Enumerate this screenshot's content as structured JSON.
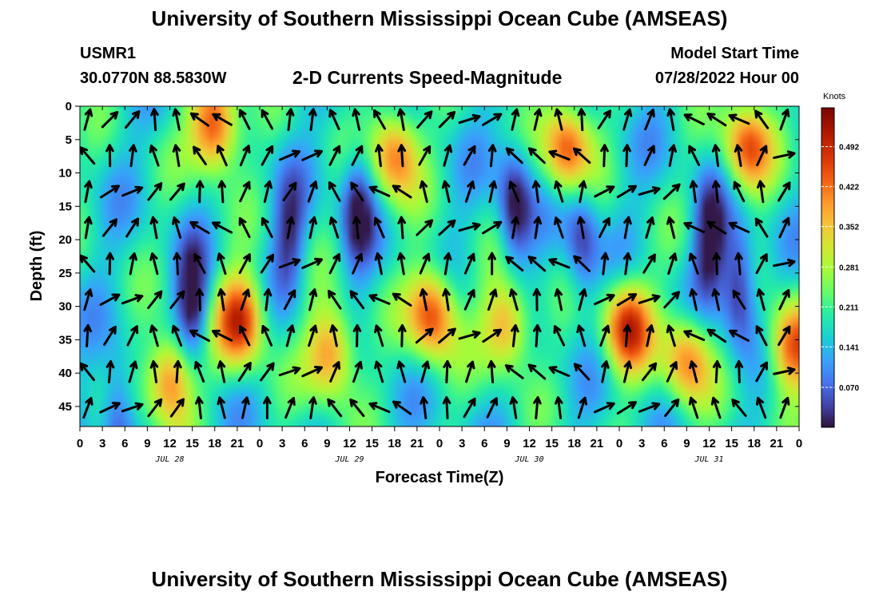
{
  "header": {
    "title": "University of Southern Mississippi Ocean Cube (AMSEAS)",
    "station": "USMR1",
    "coords": "30.0770N  88.5830W",
    "chart_title": "2-D Currents Speed-Magnitude",
    "model_label": "Model Start Time",
    "model_time": "07/28/2022 Hour 00"
  },
  "footer": {
    "title": "University of Southern Mississippi Ocean Cube (AMSEAS)"
  },
  "chart_data": {
    "type": "heatmap",
    "title": "2-D Currents Speed-Magnitude",
    "xlabel": "Forecast Time(Z)",
    "ylabel": "Depth (ft)",
    "x_tick_labels": [
      "0",
      "3",
      "6",
      "9",
      "12",
      "15",
      "18",
      "21",
      "0",
      "3",
      "6",
      "9",
      "12",
      "15",
      "18",
      "21",
      "0",
      "3",
      "6",
      "9",
      "12",
      "15",
      "18",
      "21",
      "0",
      "3",
      "6",
      "9",
      "12",
      "15",
      "18",
      "21",
      "0"
    ],
    "x_range_hours": [
      0,
      96
    ],
    "date_labels": [
      {
        "label": "JUL 28",
        "hour": 12
      },
      {
        "label": "JUL 29",
        "hour": 36
      },
      {
        "label": "JUL 30",
        "hour": 60
      },
      {
        "label": "JUL 31",
        "hour": 84
      }
    ],
    "y_ticks": [
      0,
      5,
      10,
      15,
      20,
      25,
      30,
      35,
      40,
      45
    ],
    "y_tick_labels": [
      "0",
      "5",
      "10",
      "15",
      "20",
      "25",
      "30",
      "35",
      "40",
      "45"
    ],
    "ylim": [
      0,
      48
    ],
    "y_inverted": true,
    "colorbar": {
      "label": "Knots",
      "ticks": [
        0.07,
        0.141,
        0.211,
        0.281,
        0.352,
        0.422,
        0.492
      ],
      "tick_labels": [
        "0.070",
        "0.141",
        "0.211",
        "0.281",
        "0.352",
        "0.422",
        "0.492"
      ],
      "range": [
        0,
        0.56
      ]
    },
    "high_speed_blobs": [
      {
        "hour": 18,
        "depth": 3,
        "speed": 0.5
      },
      {
        "hour": 42,
        "depth": 7,
        "speed": 0.44
      },
      {
        "hour": 65,
        "depth": 6,
        "speed": 0.46
      },
      {
        "hour": 89,
        "depth": 6,
        "speed": 0.45
      },
      {
        "hour": 12,
        "depth": 41,
        "speed": 0.46
      },
      {
        "hour": 21.5,
        "depth": 32,
        "speed": 0.5
      },
      {
        "hour": 33.5,
        "depth": 37,
        "speed": 0.44
      },
      {
        "hour": 47,
        "depth": 31,
        "speed": 0.48
      },
      {
        "hour": 57,
        "depth": 33,
        "speed": 0.42
      },
      {
        "hour": 73,
        "depth": 33,
        "speed": 0.48
      },
      {
        "hour": 81,
        "depth": 38,
        "speed": 0.42
      },
      {
        "hour": 95,
        "depth": 36,
        "speed": 0.46
      }
    ],
    "low_speed_zones": [
      {
        "hour": 15,
        "depth": 30,
        "speed": 0.03
      },
      {
        "hour": 37,
        "depth": 15,
        "speed": 0.05
      },
      {
        "hour": 58,
        "depth": 15,
        "speed": 0.03
      },
      {
        "hour": 84,
        "depth": 20,
        "speed": 0.04
      },
      {
        "hour": 88,
        "depth": 27,
        "speed": 0.03
      },
      {
        "hour": 5,
        "depth": 47,
        "speed": 0.06
      },
      {
        "hour": 28,
        "depth": 20,
        "speed": 0.07
      },
      {
        "hour": 67,
        "depth": 20,
        "speed": 0.06
      }
    ]
  }
}
